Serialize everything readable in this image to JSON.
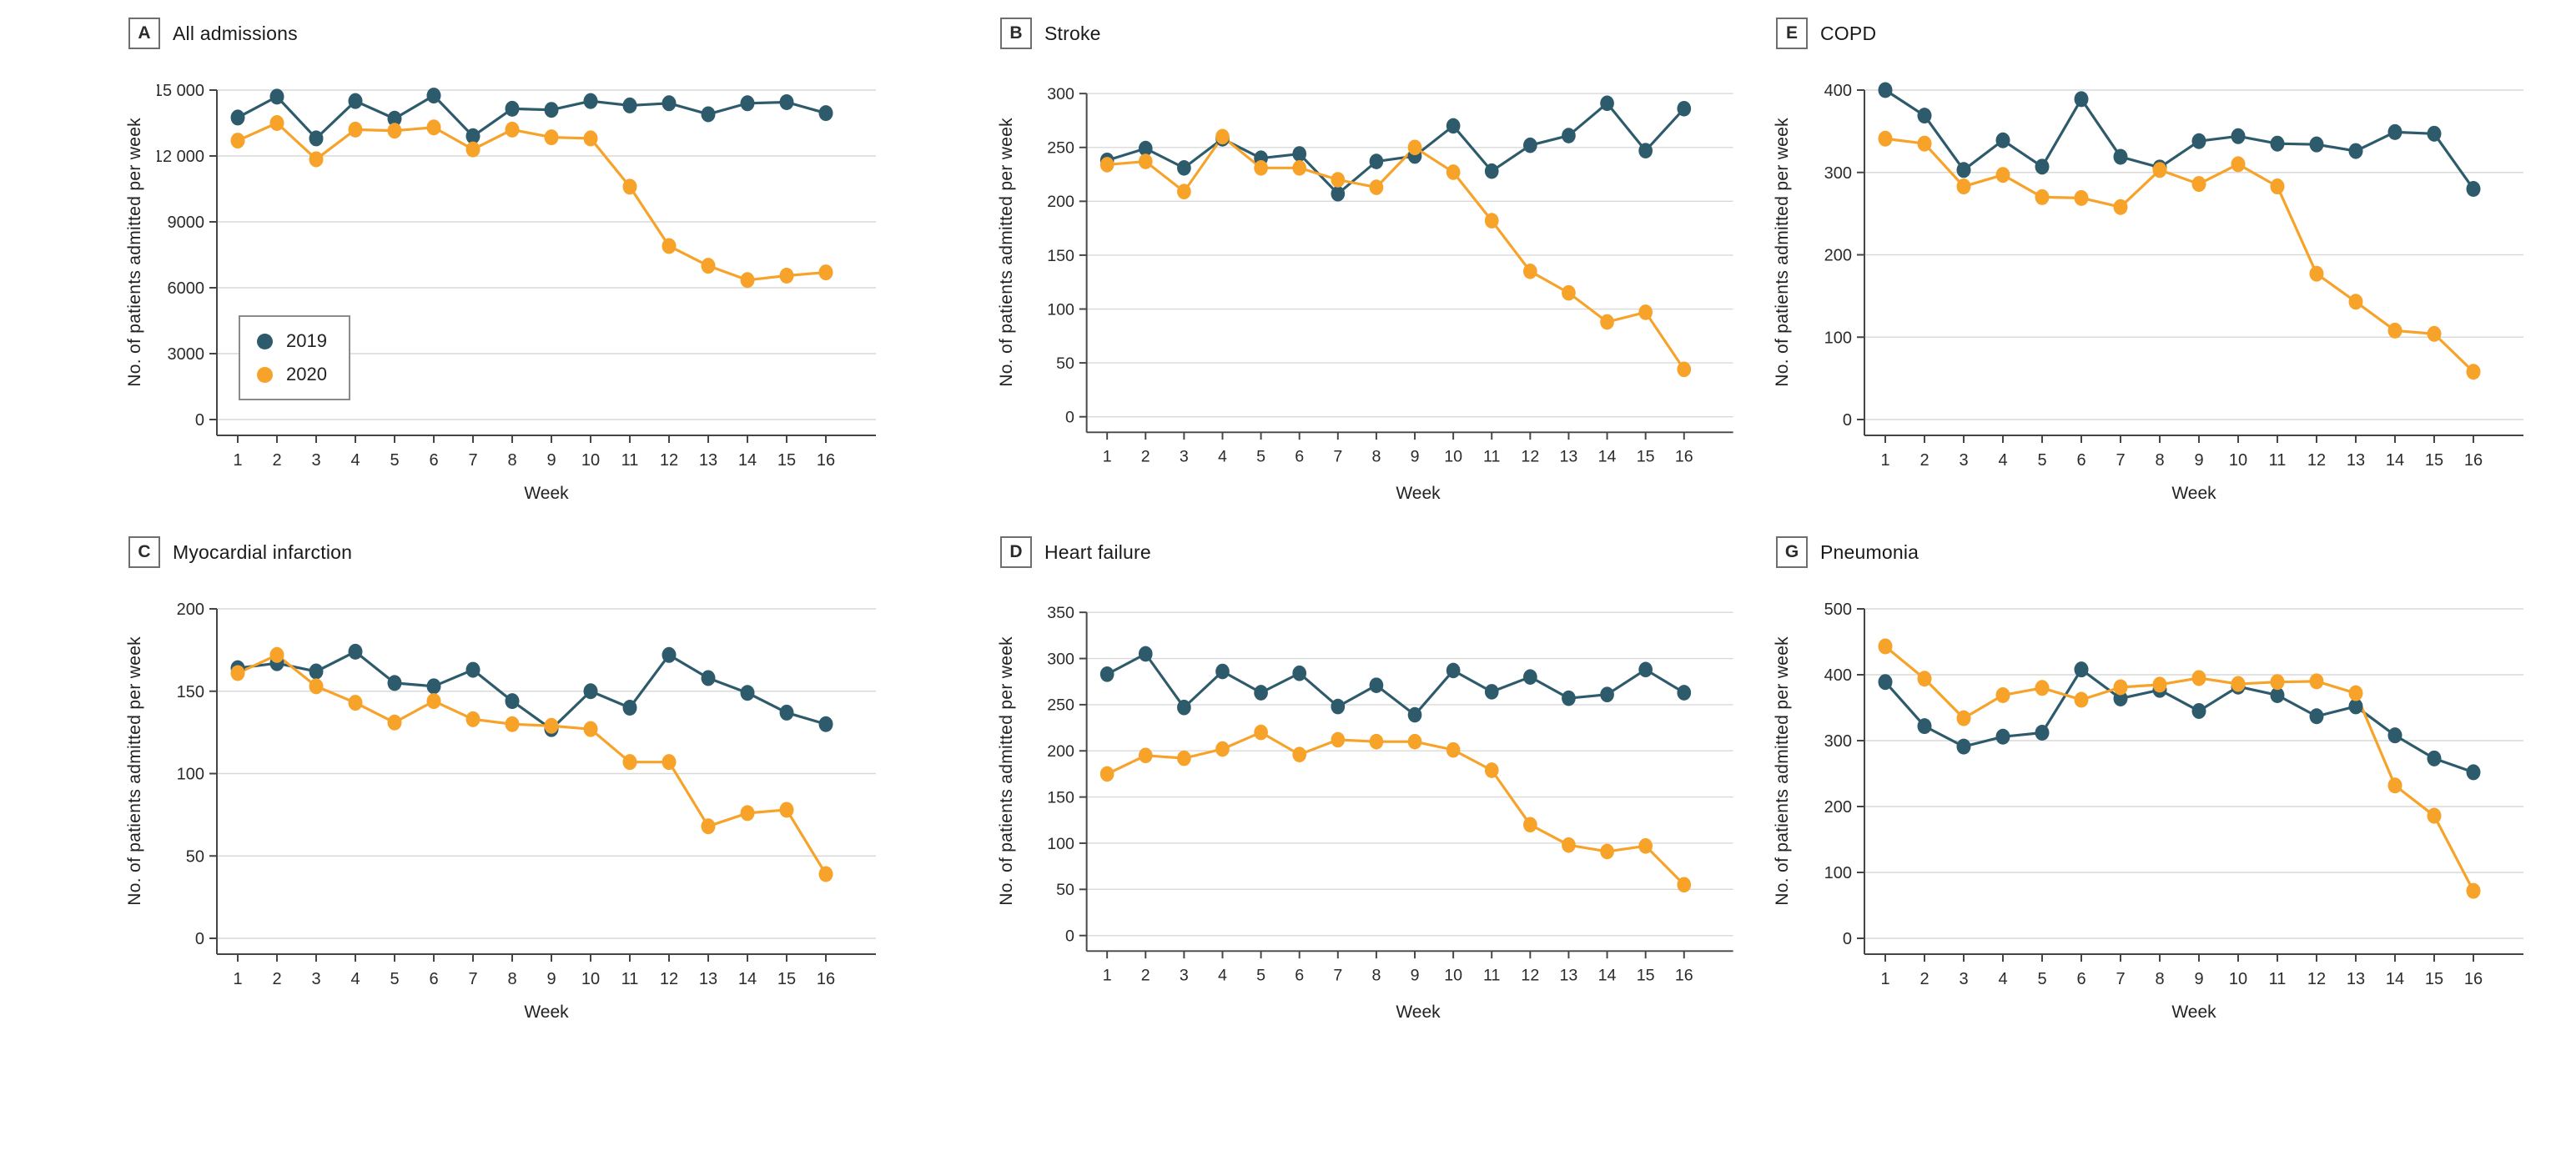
{
  "figure": {
    "background": "#ffffff",
    "grid_color": "#d9d9d9",
    "axis_color": "#454545",
    "tick_label_color": "#2b2b2b"
  },
  "legend": {
    "items": [
      {
        "label": "2019",
        "color": "#2e5b6c"
      },
      {
        "label": "2020",
        "color": "#f7a229"
      }
    ]
  },
  "axes": {
    "x_label": "Week",
    "y_label": "No. of patients admitted per week"
  },
  "chart_data": [
    {
      "type": "line",
      "panel_letter": "A",
      "title": "All admissions",
      "xlabel": "Week",
      "ylabel": "No. of patients admitted per week",
      "x": [
        1,
        2,
        3,
        4,
        5,
        6,
        7,
        8,
        9,
        10,
        11,
        12,
        13,
        14,
        15,
        16
      ],
      "ylim": [
        0,
        15000
      ],
      "grid": true,
      "legend_visible": true,
      "legend_position": "lower-left",
      "y_ticks": [
        {
          "value": 0,
          "label": "0"
        },
        {
          "value": 3000,
          "label": "3000"
        },
        {
          "value": 6000,
          "label": "6000"
        },
        {
          "value": 9000,
          "label": "9000"
        },
        {
          "value": 12000,
          "label": "12 000"
        },
        {
          "value": 15000,
          "label": "15 000"
        }
      ],
      "series": [
        {
          "name": "2019",
          "color": "#2e5b6c",
          "values": [
            13750,
            14700,
            12800,
            14500,
            13700,
            14750,
            12900,
            14150,
            14100,
            14500,
            14300,
            14400,
            13900,
            14400,
            14450,
            13950
          ]
        },
        {
          "name": "2020",
          "color": "#f7a229",
          "values": [
            12700,
            13500,
            11850,
            13200,
            13150,
            13300,
            12300,
            13200,
            12850,
            12800,
            10600,
            7900,
            7000,
            6350,
            6550,
            6700
          ]
        }
      ]
    },
    {
      "type": "line",
      "panel_letter": "B",
      "title": "Stroke",
      "xlabel": "Week",
      "ylabel": "No. of patients admitted per week",
      "x": [
        1,
        2,
        3,
        4,
        5,
        6,
        7,
        8,
        9,
        10,
        11,
        12,
        13,
        14,
        15,
        16
      ],
      "ylim": [
        0,
        300
      ],
      "grid": true,
      "legend_visible": false,
      "y_ticks": [
        {
          "value": 0,
          "label": "0"
        },
        {
          "value": 50,
          "label": "50"
        },
        {
          "value": 100,
          "label": "100"
        },
        {
          "value": 150,
          "label": "150"
        },
        {
          "value": 200,
          "label": "200"
        },
        {
          "value": 250,
          "label": "250"
        },
        {
          "value": 300,
          "label": "300"
        }
      ],
      "series": [
        {
          "name": "2019",
          "color": "#2e5b6c",
          "values": [
            238,
            249,
            231,
            258,
            240,
            244,
            207,
            237,
            242,
            270,
            228,
            252,
            261,
            291,
            247,
            286
          ]
        },
        {
          "name": "2020",
          "color": "#f7a229",
          "values": [
            234,
            237,
            209,
            260,
            231,
            231,
            220,
            213,
            250,
            227,
            182,
            135,
            115,
            88,
            97,
            44
          ]
        }
      ]
    },
    {
      "type": "line",
      "panel_letter": "E",
      "title": "COPD",
      "xlabel": "Week",
      "ylabel": "No. of patients admitted per week",
      "x": [
        1,
        2,
        3,
        4,
        5,
        6,
        7,
        8,
        9,
        10,
        11,
        12,
        13,
        14,
        15,
        16
      ],
      "ylim": [
        0,
        400
      ],
      "grid": true,
      "legend_visible": false,
      "y_ticks": [
        {
          "value": 0,
          "label": "0"
        },
        {
          "value": 100,
          "label": "100"
        },
        {
          "value": 200,
          "label": "200"
        },
        {
          "value": 300,
          "label": "300"
        },
        {
          "value": 400,
          "label": "400"
        }
      ],
      "series": [
        {
          "name": "2019",
          "color": "#2e5b6c",
          "values": [
            400,
            369,
            303,
            339,
            307,
            389,
            319,
            306,
            338,
            344,
            335,
            334,
            326,
            349,
            347,
            280
          ]
        },
        {
          "name": "2020",
          "color": "#f7a229",
          "values": [
            341,
            335,
            283,
            297,
            270,
            269,
            258,
            303,
            286,
            310,
            283,
            177,
            143,
            108,
            104,
            58
          ]
        }
      ]
    },
    {
      "type": "line",
      "panel_letter": "C",
      "title": "Myocardial infarction",
      "xlabel": "Week",
      "ylabel": "No. of patients admitted per week",
      "x": [
        1,
        2,
        3,
        4,
        5,
        6,
        7,
        8,
        9,
        10,
        11,
        12,
        13,
        14,
        15,
        16
      ],
      "ylim": [
        0,
        200
      ],
      "grid": true,
      "legend_visible": false,
      "y_ticks": [
        {
          "value": 0,
          "label": "0"
        },
        {
          "value": 50,
          "label": "50"
        },
        {
          "value": 100,
          "label": "100"
        },
        {
          "value": 150,
          "label": "150"
        },
        {
          "value": 200,
          "label": "200"
        }
      ],
      "series": [
        {
          "name": "2019",
          "color": "#2e5b6c",
          "values": [
            164,
            167,
            162,
            174,
            155,
            153,
            163,
            144,
            127,
            150,
            140,
            172,
            158,
            149,
            137,
            130
          ]
        },
        {
          "name": "2020",
          "color": "#f7a229",
          "values": [
            161,
            172,
            153,
            143,
            131,
            144,
            133,
            130,
            129,
            127,
            107,
            107,
            68,
            76,
            78,
            39
          ]
        }
      ]
    },
    {
      "type": "line",
      "panel_letter": "D",
      "title": "Heart failure",
      "xlabel": "Week",
      "ylabel": "No. of patients admitted per week",
      "x": [
        1,
        2,
        3,
        4,
        5,
        6,
        7,
        8,
        9,
        10,
        11,
        12,
        13,
        14,
        15,
        16
      ],
      "ylim": [
        0,
        350
      ],
      "grid": true,
      "legend_visible": false,
      "y_ticks": [
        {
          "value": 0,
          "label": "0"
        },
        {
          "value": 50,
          "label": "50"
        },
        {
          "value": 100,
          "label": "100"
        },
        {
          "value": 150,
          "label": "150"
        },
        {
          "value": 200,
          "label": "200"
        },
        {
          "value": 250,
          "label": "250"
        },
        {
          "value": 300,
          "label": "300"
        },
        {
          "value": 350,
          "label": "350"
        }
      ],
      "series": [
        {
          "name": "2019",
          "color": "#2e5b6c",
          "values": [
            283,
            305,
            247,
            286,
            263,
            284,
            248,
            271,
            239,
            287,
            264,
            280,
            257,
            261,
            288,
            263
          ]
        },
        {
          "name": "2020",
          "color": "#f7a229",
          "values": [
            175,
            195,
            192,
            202,
            220,
            196,
            212,
            210,
            210,
            201,
            179,
            120,
            98,
            91,
            97,
            55
          ]
        }
      ]
    },
    {
      "type": "line",
      "panel_letter": "G",
      "title": "Pneumonia",
      "xlabel": "Week",
      "ylabel": "No. of patients admitted per week",
      "x": [
        1,
        2,
        3,
        4,
        5,
        6,
        7,
        8,
        9,
        10,
        11,
        12,
        13,
        14,
        15,
        16
      ],
      "ylim": [
        0,
        500
      ],
      "grid": true,
      "legend_visible": false,
      "y_ticks": [
        {
          "value": 0,
          "label": "0"
        },
        {
          "value": 100,
          "label": "100"
        },
        {
          "value": 200,
          "label": "200"
        },
        {
          "value": 300,
          "label": "300"
        },
        {
          "value": 400,
          "label": "400"
        },
        {
          "value": 500,
          "label": "500"
        }
      ],
      "series": [
        {
          "name": "2019",
          "color": "#2e5b6c",
          "values": [
            389,
            322,
            291,
            306,
            312,
            408,
            364,
            377,
            345,
            382,
            369,
            337,
            352,
            308,
            273,
            252
          ]
        },
        {
          "name": "2020",
          "color": "#f7a229",
          "values": [
            443,
            394,
            334,
            369,
            380,
            362,
            381,
            385,
            395,
            386,
            389,
            390,
            372,
            232,
            186,
            72
          ]
        }
      ]
    }
  ]
}
